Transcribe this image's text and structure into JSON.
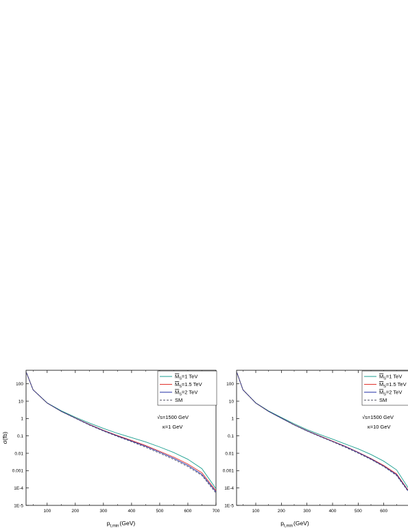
{
  "chart_data": [
    {
      "type": "line",
      "xlabel": "p_{t,min} (GeV)",
      "xlabel_main": "p",
      "xlabel_sub": "t,min",
      "xlabel_unit": "(GeV)",
      "ylabel": "σ(fb)",
      "yscale": "log",
      "xlim": [
        25,
        700
      ],
      "ylim": [
        1e-05,
        600
      ],
      "x_ticks": [
        100,
        200,
        300,
        400,
        500,
        600,
        700
      ],
      "x_tick_labels": [
        "100",
        "200",
        "300",
        "400",
        "500",
        "600",
        "700"
      ],
      "y_ticks": [
        1e-05,
        0.0001,
        0.001,
        0.01,
        0.1,
        1,
        10,
        100
      ],
      "y_tick_labels": [
        "1E-5",
        "1E-4",
        "0.001",
        "0.01",
        "0.1",
        "1",
        "10",
        "100"
      ],
      "legend_placement": "top-right",
      "annotations": [
        "√s=1500 GeV",
        "κ=1 GeV"
      ],
      "x": [
        25,
        50,
        100,
        150,
        200,
        250,
        300,
        350,
        400,
        450,
        500,
        550,
        600,
        650,
        700
      ],
      "series": [
        {
          "name": "M̄S=1 TeV",
          "name_main": "M",
          "name_sub": "S",
          "name_rest": "=1 TeV",
          "color": "#1a9e8f",
          "dash": "solid",
          "values": [
            500,
            45,
            8,
            2.8,
            1.2,
            0.55,
            0.27,
            0.14,
            0.08,
            0.045,
            0.023,
            0.011,
            0.0045,
            0.0013,
            9e-05
          ]
        },
        {
          "name": "M̄S=1.5 TeV",
          "name_main": "M",
          "name_sub": "S",
          "name_rest": "=1.5 TeV",
          "color": "#e0302a",
          "dash": "solid",
          "values": [
            500,
            45,
            7.8,
            2.6,
            1.08,
            0.46,
            0.21,
            0.105,
            0.055,
            0.028,
            0.013,
            0.006,
            0.0024,
            0.00075,
            7e-05
          ]
        },
        {
          "name": "M̄S=2 TeV",
          "name_main": "M",
          "name_sub": "S",
          "name_rest": "=2 TeV",
          "color": "#1d2ba6",
          "dash": "solid",
          "values": [
            500,
            45,
            7.8,
            2.6,
            1.06,
            0.44,
            0.2,
            0.098,
            0.05,
            0.025,
            0.0115,
            0.0051,
            0.002,
            0.0006,
            6e-05
          ]
        },
        {
          "name": "SM",
          "name_main": "SM",
          "name_sub": "",
          "name_rest": "",
          "color": "#5a5a6a",
          "dash": "dashed",
          "values": [
            500,
            45,
            7.7,
            2.55,
            1.03,
            0.42,
            0.19,
            0.092,
            0.046,
            0.022,
            0.01,
            0.0044,
            0.0017,
            0.00052,
            5e-05
          ]
        }
      ]
    },
    {
      "type": "line",
      "xlabel": "p_{t,min} (GeV)",
      "xlabel_main": "p",
      "xlabel_sub": "t,min",
      "xlabel_unit": "(GeV)",
      "ylabel": "",
      "yscale": "log",
      "xlim": [
        25,
        700
      ],
      "ylim": [
        1e-05,
        600
      ],
      "x_ticks": [
        100,
        200,
        300,
        400,
        500,
        600
      ],
      "x_tick_labels": [
        "100",
        "200",
        "300",
        "400",
        "500",
        "600"
      ],
      "y_ticks": [
        1e-05,
        0.0001,
        0.001,
        0.01,
        0.1,
        1,
        10,
        100
      ],
      "y_tick_labels": [
        "1E-5",
        "1E-4",
        "0.001",
        "0.01",
        "0.1",
        "1",
        "10",
        "100"
      ],
      "legend_placement": "top-right",
      "annotations": [
        "√s=1500 GeV",
        "κ=10 GeV"
      ],
      "x": [
        25,
        50,
        100,
        150,
        200,
        250,
        300,
        350,
        400,
        450,
        500,
        550,
        600,
        650,
        700
      ],
      "series": [
        {
          "name": "M̄S=1 TeV",
          "name_main": "M",
          "name_sub": "S",
          "name_rest": "=1 TeV",
          "color": "#1a9e8f",
          "dash": "solid",
          "values": [
            500,
            45,
            8,
            2.75,
            1.15,
            0.5,
            0.23,
            0.12,
            0.065,
            0.034,
            0.018,
            0.0085,
            0.0035,
            0.0011,
            8e-05
          ]
        },
        {
          "name": "M̄S=1.5 TeV",
          "name_main": "M",
          "name_sub": "S",
          "name_rest": "=1.5 TeV",
          "color": "#e0302a",
          "dash": "solid",
          "values": [
            500,
            45,
            7.8,
            2.6,
            1.07,
            0.44,
            0.2,
            0.1,
            0.05,
            0.025,
            0.0115,
            0.005,
            0.002,
            0.00065,
            6e-05
          ]
        },
        {
          "name": "M̄S=2 TeV",
          "name_main": "M",
          "name_sub": "S",
          "name_rest": "=2 TeV",
          "color": "#1d2ba6",
          "dash": "solid",
          "values": [
            500,
            45,
            7.8,
            2.58,
            1.05,
            0.43,
            0.195,
            0.096,
            0.048,
            0.024,
            0.011,
            0.0047,
            0.0018,
            0.00058,
            5.5e-05
          ]
        },
        {
          "name": "SM",
          "name_main": "SM",
          "name_sub": "",
          "name_rest": "",
          "color": "#5a5a6a",
          "dash": "dashed",
          "values": [
            500,
            45,
            7.7,
            2.55,
            1.03,
            0.42,
            0.19,
            0.092,
            0.046,
            0.022,
            0.01,
            0.0044,
            0.0017,
            0.00052,
            5e-05
          ]
        }
      ]
    }
  ]
}
